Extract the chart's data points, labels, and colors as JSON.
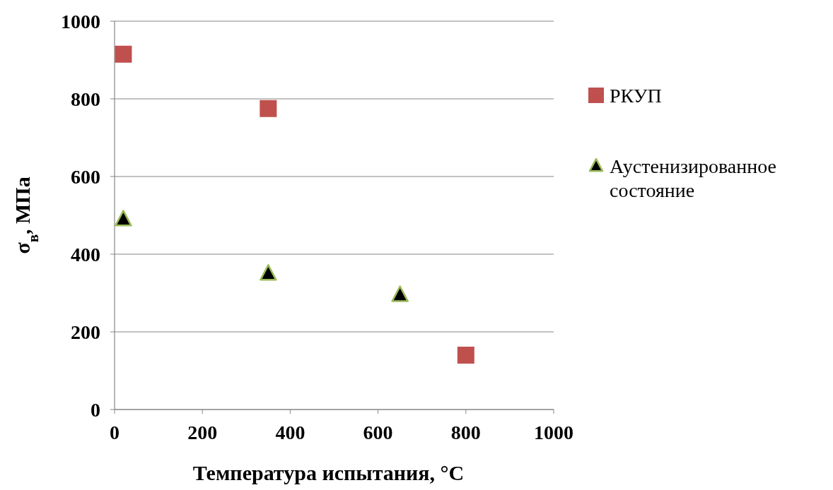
{
  "chart_data": {
    "type": "scatter",
    "xlabel": "Температура  испытания, °C",
    "ylabel": "σ$_{в}$, МПа",
    "xlim": [
      0,
      1000
    ],
    "ylim": [
      0,
      1000
    ],
    "xticks": [
      0,
      200,
      400,
      600,
      800,
      1000
    ],
    "yticks": [
      0,
      200,
      400,
      600,
      800,
      1000
    ],
    "grid": "y",
    "legend": "right",
    "series": [
      {
        "name": "РКУП",
        "color": "#c0504d",
        "marker": "square",
        "x": [
          20,
          350,
          800
        ],
        "values": [
          915,
          775,
          140
        ]
      },
      {
        "name": "Аустенизированное состояние",
        "color": "#000000",
        "marker": "triangle",
        "x": [
          20,
          350,
          650
        ],
        "values": [
          490,
          350,
          295
        ]
      }
    ]
  }
}
